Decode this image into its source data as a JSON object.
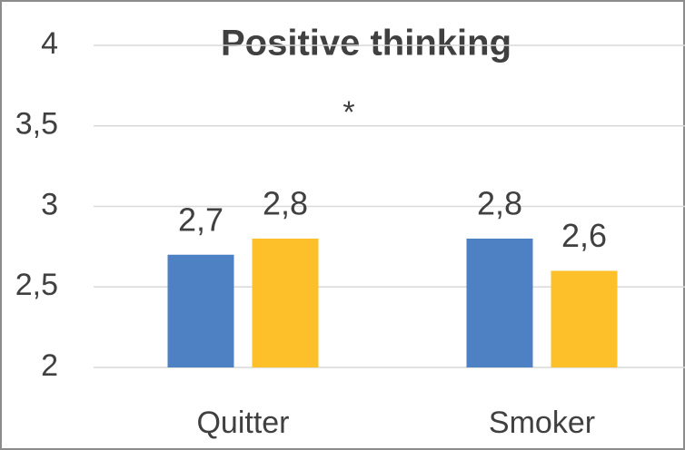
{
  "chart_data": {
    "type": "bar",
    "title": "Positive thinking",
    "annotations": [
      "*"
    ],
    "categories": [
      "Quitter",
      "Smoker"
    ],
    "series": [
      {
        "color": "#4e81c4",
        "values": [
          2.7,
          2.8
        ],
        "value_labels": [
          "2,7",
          "2,8"
        ]
      },
      {
        "color": "#fec02a",
        "values": [
          2.8,
          2.6
        ],
        "value_labels": [
          "2,8",
          "2,6"
        ]
      }
    ],
    "ylim": [
      2,
      4
    ],
    "yticks": [
      2,
      {
        "value": 2.5,
        "label": "2,5"
      },
      3,
      {
        "value": 3.5,
        "label": "3,5"
      },
      4
    ],
    "grid": true
  }
}
